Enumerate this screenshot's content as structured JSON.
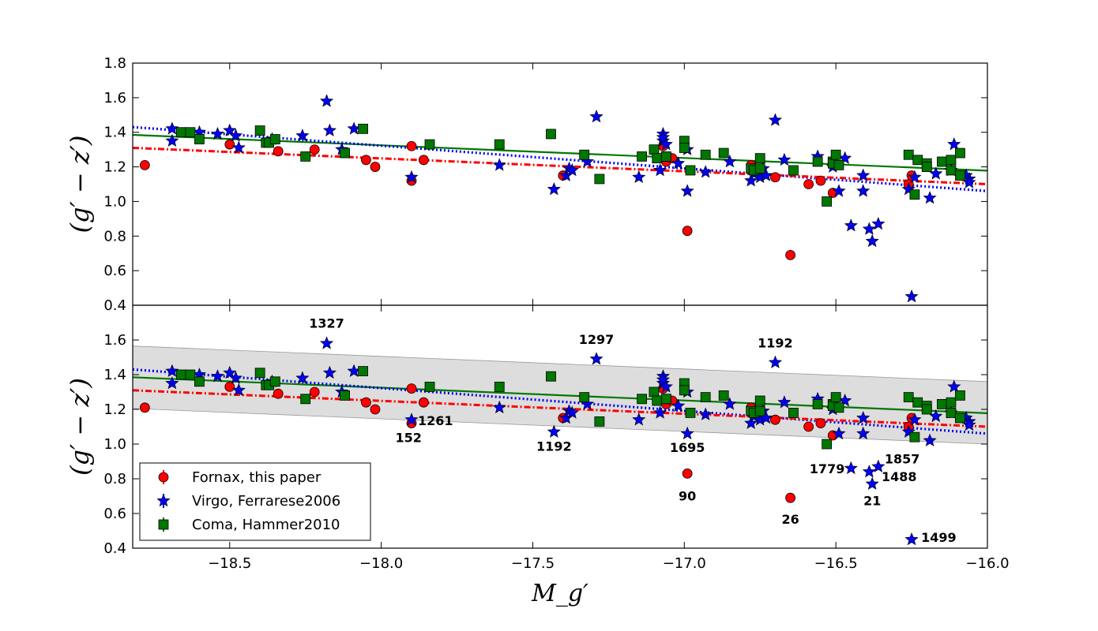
{
  "chart_data": {
    "type": "scatter",
    "xlabel": "M_g′",
    "ylabel": "(g′ − z′)",
    "xlim": [
      -18.82,
      -16.0
    ],
    "ylim": [
      0.4,
      1.8
    ],
    "xticks": [
      -18.5,
      -18.0,
      -17.5,
      -17.0,
      -16.5,
      -16.0
    ],
    "xtick_labels": [
      "−18.5",
      "−18.0",
      "−17.5",
      "−17.0",
      "−16.5",
      "−16.0"
    ],
    "yticks_top": [
      0.4,
      0.6,
      0.8,
      1.0,
      1.2,
      1.4,
      1.6,
      1.8
    ],
    "ytick_labels_top": [
      "0.4",
      "0.6",
      "0.8",
      "1.0",
      "1.2",
      "1.4",
      "1.6",
      "1.8"
    ],
    "yticks_bottom": [
      0.4,
      0.6,
      0.8,
      1.0,
      1.2,
      1.4,
      1.6
    ],
    "ytick_labels_bottom": [
      "0.4",
      "0.6",
      "0.8",
      "1.0",
      "1.2",
      "1.4",
      "1.6"
    ],
    "panels": [
      "top",
      "bottom"
    ],
    "legend": {
      "location": "lower-left",
      "entries": [
        {
          "label": "Fornax, this paper",
          "series": "fornax"
        },
        {
          "label": "Virgo, Ferrarese2006",
          "series": "virgo"
        },
        {
          "label": "Coma, Hammer2010",
          "series": "coma"
        }
      ]
    },
    "series": [
      {
        "name": "Fornax, this paper",
        "key": "fornax",
        "marker": "circle",
        "color": "#ff0000",
        "x": [
          -18.78,
          -18.5,
          -18.34,
          -18.22,
          -18.05,
          -18.02,
          -17.9,
          -17.9,
          -17.86,
          -17.4,
          -17.07,
          -17.06,
          -17.04,
          -16.99,
          -16.78,
          -16.7,
          -16.65,
          -16.59,
          -16.55,
          -16.51,
          -16.26,
          -16.25
        ],
        "y": [
          1.21,
          1.33,
          1.29,
          1.3,
          1.24,
          1.2,
          1.12,
          1.32,
          1.24,
          1.15,
          1.32,
          1.23,
          1.25,
          0.83,
          1.21,
          1.14,
          0.69,
          1.1,
          1.12,
          1.05,
          1.1,
          1.15
        ]
      },
      {
        "name": "Virgo, Ferrarese2006",
        "key": "virgo",
        "marker": "star",
        "color": "#0000ee",
        "x": [
          -18.69,
          -18.69,
          -18.6,
          -18.54,
          -18.5,
          -18.48,
          -18.47,
          -18.36,
          -18.26,
          -18.18,
          -18.17,
          -18.13,
          -18.09,
          -17.9,
          -17.61,
          -17.43,
          -17.39,
          -17.38,
          -17.37,
          -17.32,
          -17.29,
          -17.15,
          -17.08,
          -17.07,
          -17.07,
          -17.07,
          -17.06,
          -17.02,
          -16.99,
          -16.99,
          -16.93,
          -16.85,
          -16.78,
          -16.77,
          -16.75,
          -16.74,
          -16.73,
          -16.7,
          -16.67,
          -16.56,
          -16.51,
          -16.49,
          -16.47,
          -16.45,
          -16.41,
          -16.41,
          -16.39,
          -16.38,
          -16.36,
          -16.25,
          -16.26,
          -16.24,
          -16.19,
          -16.17,
          -16.12,
          -16.11,
          -16.07,
          -16.06,
          -16.06
        ],
        "y": [
          1.42,
          1.35,
          1.4,
          1.39,
          1.41,
          1.38,
          1.31,
          1.36,
          1.38,
          1.58,
          1.41,
          1.3,
          1.42,
          1.14,
          1.21,
          1.07,
          1.15,
          1.19,
          1.18,
          1.23,
          1.49,
          1.14,
          1.18,
          1.35,
          1.39,
          1.37,
          1.33,
          1.22,
          1.06,
          1.3,
          1.17,
          1.23,
          1.12,
          1.16,
          1.14,
          1.19,
          1.15,
          1.47,
          1.24,
          1.26,
          1.2,
          1.06,
          1.25,
          0.86,
          1.15,
          1.06,
          0.84,
          0.77,
          0.87,
          0.45,
          1.07,
          1.14,
          1.02,
          1.16,
          1.18,
          1.33,
          1.15,
          1.13,
          1.11
        ]
      },
      {
        "name": "Coma, Hammer2010",
        "key": "coma",
        "marker": "square",
        "color": "#007700",
        "x": [
          -18.66,
          -18.63,
          -18.6,
          -18.4,
          -18.38,
          -18.37,
          -18.35,
          -18.25,
          -18.12,
          -18.06,
          -17.84,
          -17.61,
          -17.44,
          -17.33,
          -17.28,
          -17.14,
          -17.1,
          -17.09,
          -17.06,
          -17.06,
          -17.0,
          -17.0,
          -16.98,
          -16.93,
          -16.87,
          -16.78,
          -16.77,
          -16.75,
          -16.75,
          -16.64,
          -16.56,
          -16.53,
          -16.51,
          -16.51,
          -16.5,
          -16.49,
          -16.26,
          -16.24,
          -16.23,
          -16.2,
          -16.2,
          -16.15,
          -16.12,
          -16.12,
          -16.09,
          -16.09
        ],
        "y": [
          1.4,
          1.4,
          1.36,
          1.41,
          1.34,
          1.34,
          1.36,
          1.26,
          1.28,
          1.42,
          1.33,
          1.33,
          1.39,
          1.27,
          1.13,
          1.26,
          1.3,
          1.25,
          1.26,
          1.26,
          1.35,
          1.31,
          1.18,
          1.27,
          1.28,
          1.19,
          1.18,
          1.25,
          1.19,
          1.18,
          1.23,
          1.0,
          1.23,
          1.22,
          1.27,
          1.21,
          1.27,
          1.04,
          1.24,
          1.22,
          1.2,
          1.23,
          1.24,
          1.18,
          1.28,
          1.15
        ]
      }
    ],
    "fits": [
      {
        "name": "Coma fit",
        "style": "solid",
        "color": "#007700",
        "x": [
          -18.82,
          -16.0
        ],
        "y": [
          1.385,
          1.178
        ]
      },
      {
        "name": "Virgo fit",
        "style": "dotted",
        "color": "#0000ee",
        "x": [
          -18.82,
          -16.0
        ],
        "y": [
          1.43,
          1.06
        ]
      },
      {
        "name": "Fornax fit",
        "style": "dash-dot",
        "color": "#ff0000",
        "x": [
          -18.82,
          -16.0
        ],
        "y": [
          1.31,
          1.1
        ]
      }
    ],
    "scatter_band": {
      "panel": "bottom",
      "color": "#dddddd",
      "upper": [
        1.565,
        1.36
      ],
      "lower": [
        1.205,
        1.0
      ]
    },
    "annotations": [
      {
        "text": "1327",
        "x": -18.18,
        "y": 1.58,
        "anchor": "middle",
        "dy": -20
      },
      {
        "text": "1297",
        "x": -17.29,
        "y": 1.49,
        "anchor": "middle",
        "dy": -19
      },
      {
        "text": "1192",
        "x": -16.7,
        "y": 1.47,
        "anchor": "middle",
        "dy": -19
      },
      {
        "text": "1261",
        "x": -17.9,
        "y": 1.14,
        "anchor": "start",
        "dx": 8,
        "dy": 7
      },
      {
        "text": "152",
        "x": -17.91,
        "y": 1.12,
        "anchor": "middle",
        "dy": 24
      },
      {
        "text": "1192",
        "x": -17.43,
        "y": 1.07,
        "anchor": "middle",
        "dy": 24
      },
      {
        "text": "1695",
        "x": -16.99,
        "y": 1.06,
        "anchor": "middle",
        "dy": 23
      },
      {
        "text": "90",
        "x": -16.99,
        "y": 0.83,
        "anchor": "middle",
        "dy": 34
      },
      {
        "text": "26",
        "x": -16.65,
        "y": 0.69,
        "anchor": "middle",
        "dy": 33
      },
      {
        "text": "1779",
        "x": -16.45,
        "y": 0.86,
        "anchor": "end",
        "dx": -8,
        "dy": 6
      },
      {
        "text": "1857",
        "x": -16.36,
        "y": 0.87,
        "anchor": "start",
        "dx": 8,
        "dy": -4
      },
      {
        "text": "1488",
        "x": -16.37,
        "y": 0.84,
        "anchor": "start",
        "dx": 8,
        "dy": 12
      },
      {
        "text": "21",
        "x": -16.38,
        "y": 0.77,
        "anchor": "middle",
        "dy": 27
      },
      {
        "text": "1499",
        "x": -16.25,
        "y": 0.45,
        "anchor": "start",
        "dx": 12,
        "dy": 3
      }
    ]
  }
}
